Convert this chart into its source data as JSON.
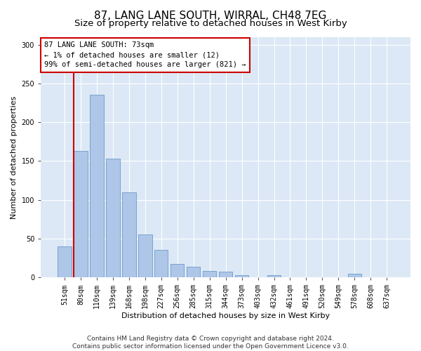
{
  "title1": "87, LANG LANE SOUTH, WIRRAL, CH48 7EG",
  "title2": "Size of property relative to detached houses in West Kirby",
  "xlabel": "Distribution of detached houses by size in West Kirby",
  "ylabel": "Number of detached properties",
  "categories": [
    "51sqm",
    "80sqm",
    "110sqm",
    "139sqm",
    "168sqm",
    "198sqm",
    "227sqm",
    "256sqm",
    "285sqm",
    "315sqm",
    "344sqm",
    "373sqm",
    "403sqm",
    "432sqm",
    "461sqm",
    "491sqm",
    "520sqm",
    "549sqm",
    "578sqm",
    "608sqm",
    "637sqm"
  ],
  "bar_values": [
    40,
    163,
    235,
    153,
    110,
    55,
    35,
    17,
    14,
    8,
    7,
    3,
    0,
    3,
    0,
    0,
    0,
    0,
    5,
    0,
    0
  ],
  "bar_color": "#aec6e8",
  "bar_edge_color": "#5a8fc2",
  "annotation_text_line1": "87 LANG LANE SOUTH: 73sqm",
  "annotation_text_line2": "← 1% of detached houses are smaller (12)",
  "annotation_text_line3": "99% of semi-detached houses are larger (821) →",
  "annotation_box_color": "#ffffff",
  "annotation_border_color": "#cc0000",
  "ylim": [
    0,
    310
  ],
  "yticks": [
    0,
    50,
    100,
    150,
    200,
    250,
    300
  ],
  "bg_color": "#dce8f5",
  "grid_color": "#ffffff",
  "fig_bg_color": "#ffffff",
  "footer_line1": "Contains HM Land Registry data © Crown copyright and database right 2024.",
  "footer_line2": "Contains public sector information licensed under the Open Government Licence v3.0.",
  "title1_fontsize": 11,
  "title2_fontsize": 9.5,
  "axis_label_fontsize": 8,
  "tick_fontsize": 7,
  "annotation_fontsize": 7.5,
  "footer_fontsize": 6.5,
  "red_line_color": "#cc0000",
  "red_line_x": 0.55
}
